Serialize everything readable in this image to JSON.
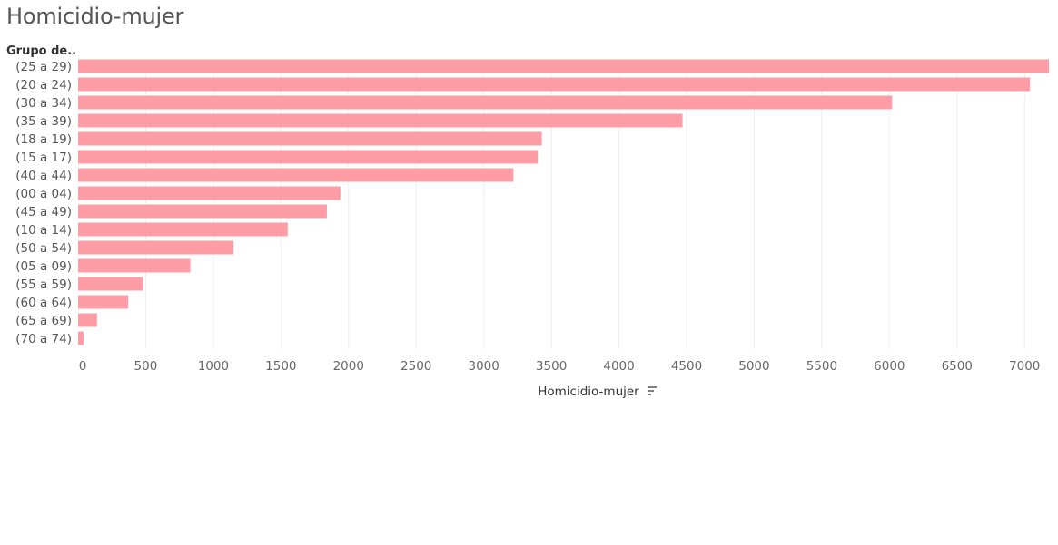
{
  "page": {
    "title": "Homicidio-mujer"
  },
  "chart_data": {
    "type": "bar",
    "orientation": "horizontal",
    "title": "Homicidio-mujer",
    "row_header": "Grupo de..",
    "xlabel": "Homicidio-mujer",
    "ylabel": "",
    "categories": [
      "(25 a 29)",
      "(20 a 24)",
      "(30 a 34)",
      "(35 a 39)",
      "(18 a 19)",
      "(15 a 17)",
      "(40 a 44)",
      "(00 a 04)",
      "(45 a 49)",
      "(10 a 14)",
      "(50 a 54)",
      "(05 a 09)",
      "(55 a 59)",
      "(60 a 64)",
      "(65 a 69)",
      "(70 a 74)"
    ],
    "values": [
      7180,
      7040,
      6020,
      4470,
      3430,
      3400,
      3220,
      1940,
      1840,
      1550,
      1150,
      830,
      480,
      370,
      140,
      40
    ],
    "xlim": [
      0,
      7200
    ],
    "x_ticks": [
      0,
      500,
      1000,
      1500,
      2000,
      2500,
      3000,
      3500,
      4000,
      4500,
      5000,
      5500,
      6000,
      6500,
      7000
    ],
    "grid": true,
    "sorted": "descending",
    "bar_color": "#FF9DA7",
    "sort_icon": "sort-descending-icon"
  }
}
